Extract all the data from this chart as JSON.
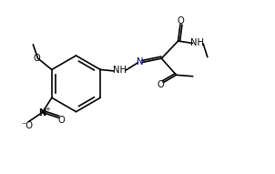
{
  "bg_color": "#ffffff",
  "bond_color": "#000000",
  "n_color": "#00008b",
  "lw": 1.2,
  "figsize": [
    3.02,
    1.91
  ],
  "dpi": 100,
  "xlim": [
    0,
    10.2
  ],
  "ylim": [
    0,
    6.35
  ]
}
